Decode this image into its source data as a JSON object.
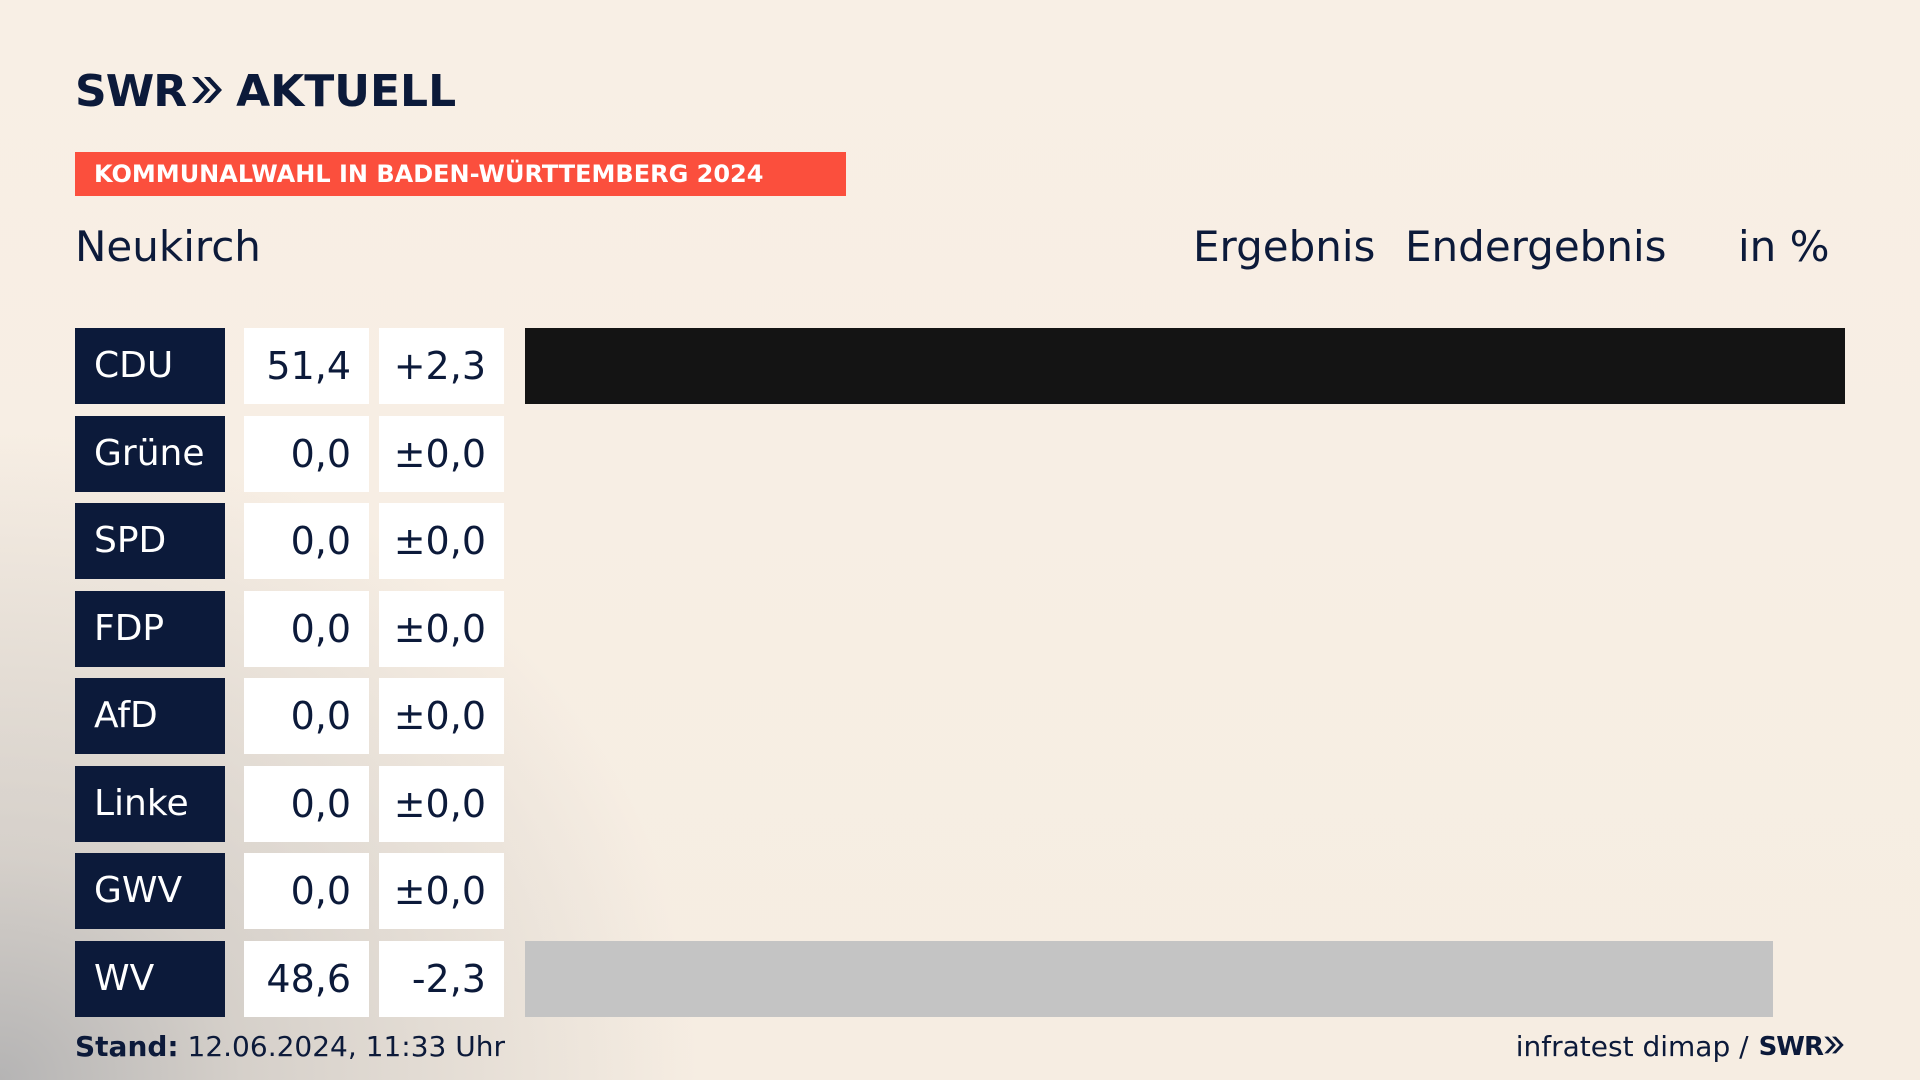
{
  "brand": {
    "swr": "SWR",
    "aktuell": "AKTUELL",
    "accent": "#fb4f3d",
    "navy": "#0c1a3a"
  },
  "banner": "KOMMUNALWAHL IN BADEN-WÜRTTEMBERG 2024",
  "place": "Neukirch",
  "header": {
    "ergebnis": "Ergebnis",
    "final": "Endergebnis",
    "unit": "in %"
  },
  "footer": {
    "stand_label": "Stand:",
    "stand_value": "12.06.2024, 11:33 Uhr",
    "source": "infratest dimap /",
    "swr": "SWR"
  },
  "chart_data": {
    "type": "bar",
    "orientation": "horizontal",
    "unit": "%",
    "categories": [
      "CDU",
      "Grüne",
      "SPD",
      "FDP",
      "AfD",
      "Linke",
      "GWV",
      "WV"
    ],
    "values": [
      51.4,
      0.0,
      0.0,
      0.0,
      0.0,
      0.0,
      0.0,
      48.6
    ],
    "value_labels": [
      "51,4",
      "0,0",
      "0,0",
      "0,0",
      "0,0",
      "0,0",
      "0,0",
      "48,6"
    ],
    "changes": [
      2.3,
      0.0,
      0.0,
      0.0,
      0.0,
      0.0,
      0.0,
      -2.3
    ],
    "change_labels": [
      "+2,3",
      "±0,0",
      "±0,0",
      "±0,0",
      "±0,0",
      "±0,0",
      "±0,0",
      "-2,3"
    ],
    "colors": [
      "#141414",
      "#4e9a2e",
      "#e3000f",
      "#ffd600",
      "#0089d0",
      "#be3075",
      "#8a8a8a",
      "#c4c4c4"
    ],
    "xlim": [
      0,
      51.4
    ]
  }
}
